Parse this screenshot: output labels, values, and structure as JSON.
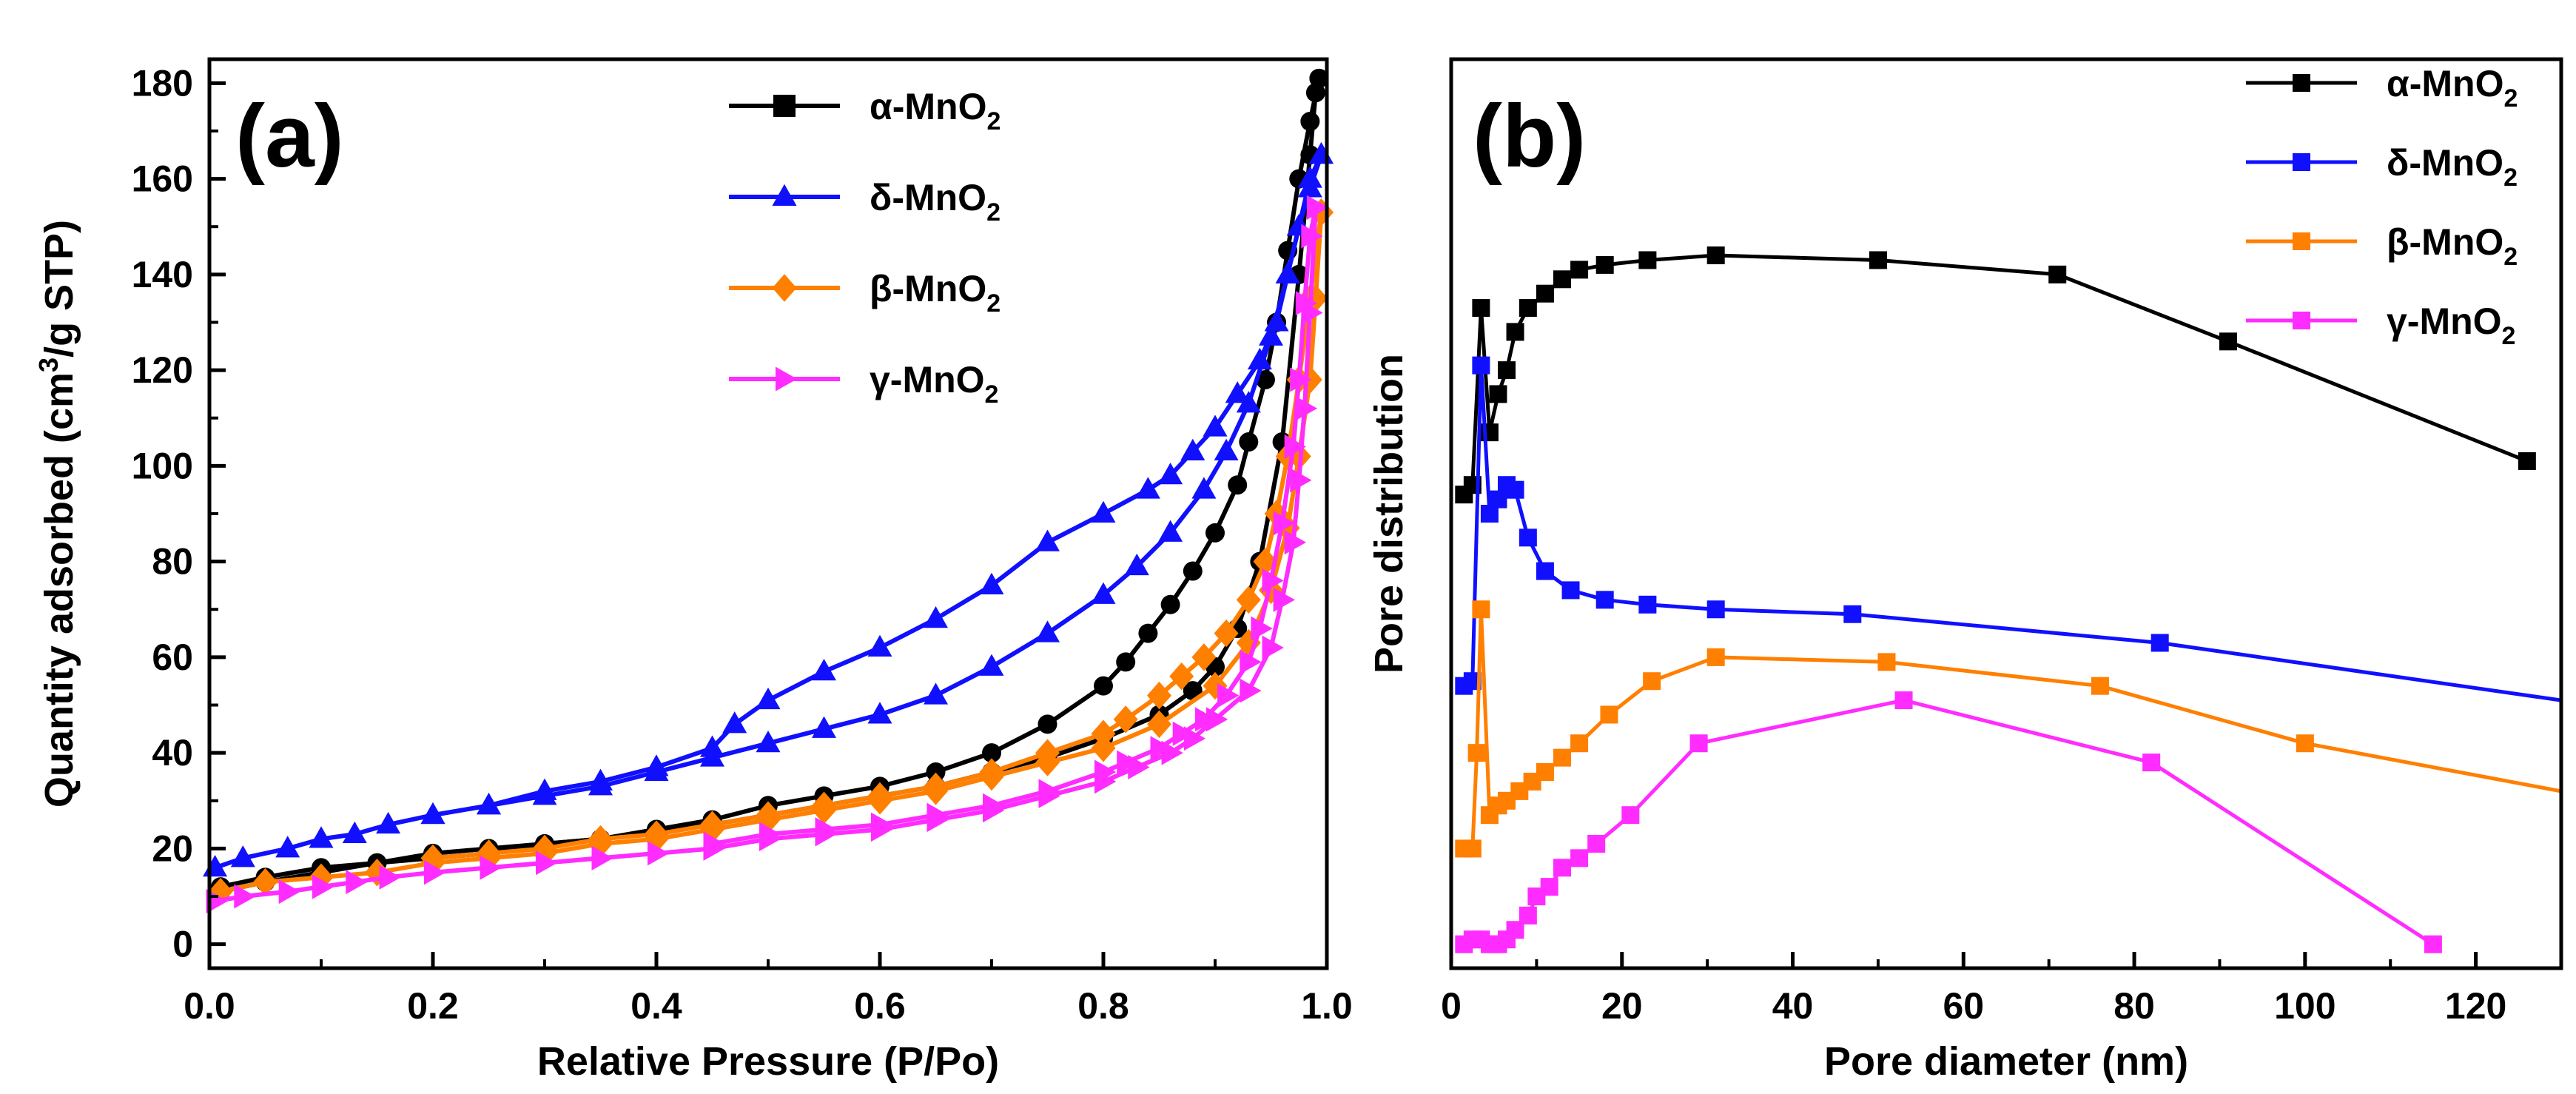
{
  "colors": {
    "alpha": "#000000",
    "delta": "#1010ff",
    "beta": "#ff7f00",
    "gamma": "#ff2cff",
    "axis": "#000000",
    "background": "#ffffff"
  },
  "chart_data": [
    {
      "id": "a",
      "type": "line",
      "panel_label": "(a)",
      "title": "",
      "xlabel": "Relative Pressure (P/Po)",
      "ylabel": "Quantity adsorbed (cm³/g STP)",
      "ylabel_parts": [
        "Quantity adsorbed (cm",
        "3",
        "/g STP)"
      ],
      "xlim": [
        0.0,
        1.0
      ],
      "ylim": [
        -5,
        185
      ],
      "xticks": [
        0.0,
        0.2,
        0.4,
        0.6,
        0.8,
        1.0
      ],
      "xtick_labels": [
        "0.0",
        "0.2",
        "0.4",
        "0.6",
        "0.8",
        "1.0"
      ],
      "yticks": [
        0,
        20,
        40,
        60,
        80,
        100,
        120,
        140,
        160,
        180
      ],
      "ytick_labels": [
        "0",
        "20",
        "40",
        "60",
        "80",
        "100",
        "120",
        "140",
        "160",
        "180"
      ],
      "legend_position": "top-center",
      "series": [
        {
          "name": "α-MnO2",
          "label_main": "α-MnO",
          "label_sub": "2",
          "color_key": "alpha",
          "marker": "square-filled",
          "legend_marker": "square",
          "adsorption": {
            "x": [
              0.01,
              0.05,
              0.1,
              0.15,
              0.2,
              0.25,
              0.3,
              0.35,
              0.4,
              0.45,
              0.5,
              0.55,
              0.6,
              0.65,
              0.7,
              0.75,
              0.8,
              0.85,
              0.88,
              0.9,
              0.92,
              0.94,
              0.96,
              0.975,
              0.985,
              0.99,
              0.993
            ],
            "y": [
              12,
              14,
              16,
              17,
              19,
              20,
              21,
              22,
              24,
              25,
              27,
              29,
              31,
              33,
              36,
              39,
              43,
              48,
              53,
              58,
              66,
              80,
              105,
              140,
              165,
              178,
              181
            ]
          },
          "desorption": {
            "x": [
              0.993,
              0.985,
              0.975,
              0.965,
              0.955,
              0.945,
              0.93,
              0.92,
              0.9,
              0.88,
              0.86,
              0.84,
              0.82,
              0.8,
              0.75,
              0.7,
              0.65,
              0.6,
              0.55,
              0.5,
              0.45,
              0.4,
              0.35,
              0.3,
              0.25,
              0.2,
              0.15,
              0.1,
              0.05,
              0.01
            ],
            "y": [
              181,
              172,
              160,
              145,
              130,
              118,
              105,
              96,
              86,
              78,
              71,
              65,
              59,
              54,
              46,
              40,
              36,
              33,
              31,
              29,
              26,
              24,
              22,
              21,
              19,
              18,
              17,
              15,
              13,
              11
            ]
          }
        },
        {
          "name": "δ-MnO2",
          "label_main": "δ-MnO",
          "label_sub": "2",
          "color_key": "delta",
          "marker": "triangle-up",
          "legend_marker": "triangle-up",
          "adsorption": {
            "x": [
              0.005,
              0.03,
              0.07,
              0.1,
              0.13,
              0.16,
              0.2,
              0.25,
              0.3,
              0.35,
              0.4,
              0.45,
              0.5,
              0.55,
              0.6,
              0.65,
              0.7,
              0.75,
              0.8,
              0.83,
              0.86,
              0.89,
              0.91,
              0.93,
              0.95,
              0.965,
              0.975,
              0.985,
              0.995
            ],
            "y": [
              16,
              18,
              20,
              22,
              23,
              25,
              27,
              29,
              31,
              33,
              36,
              39,
              42,
              45,
              48,
              52,
              58,
              65,
              73,
              79,
              86,
              95,
              103,
              113,
              127,
              140,
              150,
              158,
              165
            ]
          },
          "desorption": {
            "x": [
              0.995,
              0.985,
              0.975,
              0.965,
              0.955,
              0.94,
              0.92,
              0.9,
              0.88,
              0.86,
              0.84,
              0.8,
              0.75,
              0.7,
              0.65,
              0.6,
              0.55,
              0.5,
              0.47,
              0.45,
              0.4,
              0.35,
              0.3,
              0.25,
              0.2
            ],
            "y": [
              165,
              160,
              150,
              140,
              130,
              122,
              115,
              108,
              103,
              98,
              95,
              90,
              84,
              75,
              68,
              62,
              57,
              51,
              46,
              41,
              37,
              34,
              32,
              29,
              27
            ]
          }
        },
        {
          "name": "β-MnO2",
          "label_main": "β-MnO",
          "label_sub": "2",
          "color_key": "beta",
          "marker": "diamond",
          "legend_marker": "diamond",
          "adsorption": {
            "x": [
              0.01,
              0.05,
              0.1,
              0.15,
              0.2,
              0.25,
              0.3,
              0.35,
              0.4,
              0.45,
              0.5,
              0.55,
              0.6,
              0.65,
              0.7,
              0.75,
              0.8,
              0.85,
              0.9,
              0.93,
              0.95,
              0.965,
              0.975,
              0.985,
              0.99,
              0.995
            ],
            "y": [
              11,
              13,
              14,
              15,
              17,
              18,
              19,
              21,
              22,
              24,
              26,
              28,
              30,
              32,
              35,
              38,
              41,
              46,
              54,
              63,
              74,
              87,
              102,
              118,
              135,
              153
            ]
          },
          "desorption": {
            "x": [
              0.995,
              0.985,
              0.975,
              0.965,
              0.955,
              0.945,
              0.93,
              0.91,
              0.89,
              0.87,
              0.85,
              0.82,
              0.8,
              0.75,
              0.7,
              0.65,
              0.6,
              0.55,
              0.5,
              0.45,
              0.4,
              0.35,
              0.3,
              0.25,
              0.2
            ],
            "y": [
              153,
              135,
              118,
              102,
              90,
              80,
              72,
              65,
              60,
              56,
              52,
              47,
              44,
              40,
              36,
              33,
              31,
              29,
              27,
              25,
              23,
              22,
              20,
              19,
              18
            ]
          }
        },
        {
          "name": "γ-MnO2",
          "label_main": "γ-MnO",
          "label_sub": "2",
          "color_key": "gamma",
          "marker": "triangle-right",
          "legend_marker": "triangle-right",
          "adsorption": {
            "x": [
              0.005,
              0.03,
              0.07,
              0.1,
              0.13,
              0.16,
              0.2,
              0.25,
              0.3,
              0.35,
              0.4,
              0.45,
              0.5,
              0.55,
              0.6,
              0.65,
              0.7,
              0.75,
              0.8,
              0.83,
              0.86,
              0.88,
              0.9,
              0.93,
              0.95,
              0.96,
              0.97,
              0.975,
              0.98,
              0.985,
              0.99
            ],
            "y": [
              9,
              10,
              11,
              12,
              13,
              14,
              15,
              16,
              17,
              18,
              19,
              20,
              22,
              23,
              24,
              26,
              28,
              31,
              34,
              37,
              40,
              43,
              47,
              53,
              62,
              72,
              84,
              97,
              112,
              132,
              154
            ]
          },
          "desorption": {
            "x": [
              0.99,
              0.985,
              0.98,
              0.975,
              0.97,
              0.96,
              0.95,
              0.94,
              0.93,
              0.91,
              0.89,
              0.87,
              0.85,
              0.82,
              0.8,
              0.75,
              0.7,
              0.65,
              0.6,
              0.55,
              0.5,
              0.45
            ],
            "y": [
              154,
              148,
              134,
              118,
              104,
              88,
              76,
              66,
              59,
              52,
              47,
              44,
              41,
              38,
              36,
              32,
              29,
              27,
              25,
              24,
              23,
              21
            ]
          }
        }
      ]
    },
    {
      "id": "b",
      "type": "line",
      "panel_label": "(b)",
      "title": "",
      "xlabel": "Pore diameter (nm)",
      "ylabel": "Pore distribution",
      "xlim": [
        0,
        130
      ],
      "ylim": [
        -5,
        185
      ],
      "y_units": "arbitrary (stacked, no tick labels)",
      "xticks": [
        0,
        20,
        40,
        60,
        80,
        100,
        120
      ],
      "xtick_labels": [
        "0",
        "20",
        "40",
        "60",
        "80",
        "100",
        "120"
      ],
      "legend_position": "top-right",
      "series": [
        {
          "name": "α-MnO2",
          "label_main": "α-MnO",
          "label_sub": "2",
          "color_key": "alpha",
          "marker": "square",
          "x": [
            1.5,
            2.5,
            3.5,
            4.5,
            5.5,
            6.5,
            7.5,
            9,
            11,
            13,
            15,
            18,
            23,
            31,
            50,
            71,
            91,
            126
          ],
          "y": [
            94,
            96,
            133,
            107,
            115,
            120,
            128,
            133,
            136,
            139,
            141,
            142,
            143,
            144,
            143,
            140,
            126,
            101
          ]
        },
        {
          "name": "δ-MnO2",
          "label_main": "δ-MnO",
          "label_sub": "2",
          "color_key": "delta",
          "marker": "square",
          "x": [
            1.5,
            2.5,
            3.5,
            4.5,
            5.5,
            6.5,
            7.5,
            9,
            11,
            14,
            18,
            23,
            31,
            47,
            83,
            130
          ],
          "y": [
            54,
            55,
            121,
            90,
            93,
            96,
            95,
            85,
            78,
            74,
            72,
            71,
            70,
            69,
            63,
            51
          ]
        },
        {
          "name": "β-MnO2",
          "label_main": "β-MnO",
          "label_sub": "2",
          "color_key": "beta",
          "marker": "square",
          "x": [
            1.5,
            2.5,
            3.0,
            3.5,
            4.5,
            5.5,
            6.5,
            8,
            9.5,
            11,
            13,
            15,
            18.5,
            23.5,
            31,
            51,
            76,
            100,
            130
          ],
          "y": [
            20,
            20,
            40,
            70,
            27,
            29,
            30,
            32,
            34,
            36,
            39,
            42,
            48,
            55,
            60,
            59,
            54,
            42,
            32
          ]
        },
        {
          "name": "γ-MnO2",
          "label_main": "γ-MnO",
          "label_sub": "2",
          "color_key": "gamma",
          "marker": "square",
          "x": [
            1.5,
            2.5,
            3.5,
            4.5,
            5.5,
            6.5,
            7.5,
            9,
            10,
            11.5,
            13,
            15,
            17,
            21,
            29,
            53,
            82,
            115
          ],
          "y": [
            0,
            1,
            1,
            0,
            0,
            1,
            3,
            6,
            10,
            12,
            16,
            18,
            21,
            27,
            42,
            51,
            38,
            0
          ]
        }
      ]
    }
  ]
}
